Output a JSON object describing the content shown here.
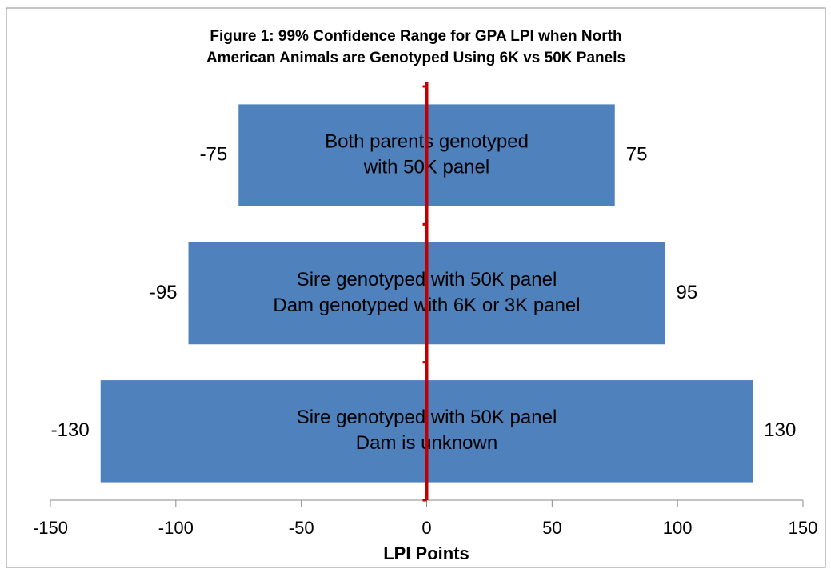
{
  "chart_data": {
    "type": "range_bar_horizontal",
    "title": [
      "Figure 1: 99% Confidence Range for GPA LPI when North",
      "American Animals are Genotyped Using 6K vs 50K Panels"
    ],
    "x_label": "LPI Points",
    "categories": [
      [
        "Both parents genotyped",
        "with 50K panel"
      ],
      [
        "Sire genotyped with 50K panel",
        "Dam genotyped with 6K or 3K panel"
      ],
      [
        "Sire genotyped with 50K panel",
        "Dam is unknown"
      ]
    ],
    "ranges": [
      [
        -75,
        75
      ],
      [
        -95,
        95
      ],
      [
        -130,
        130
      ]
    ],
    "color": "#4f81bd",
    "axis_color": "#c00000",
    "xlim": [
      -150,
      150
    ],
    "xticks": [
      -150,
      -100,
      -50,
      0,
      50,
      100,
      150
    ]
  }
}
